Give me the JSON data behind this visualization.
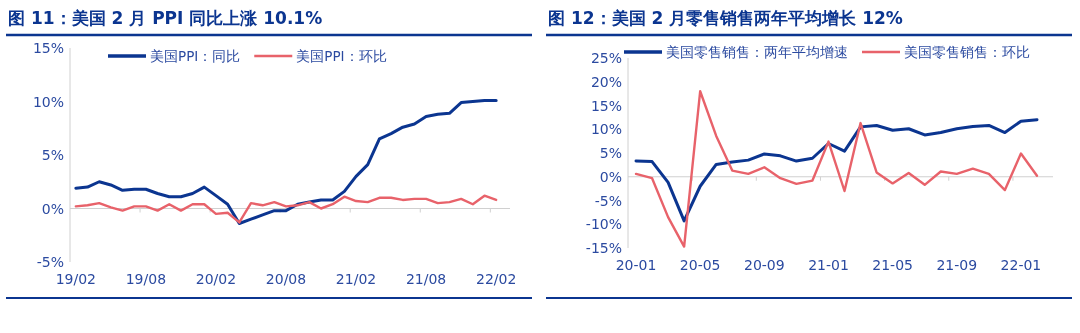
{
  "chart_data": [
    {
      "type": "line",
      "title": "图 11：美国 2 月 PPI 同比上涨 10.1%",
      "categories": [
        "19/02",
        null,
        null,
        null,
        null,
        null,
        "19/08",
        null,
        null,
        null,
        null,
        null,
        "20/02",
        null,
        null,
        null,
        null,
        null,
        "20/08",
        null,
        null,
        null,
        null,
        null,
        "21/02",
        null,
        null,
        null,
        null,
        null,
        "21/08",
        null,
        null,
        null,
        null,
        null,
        "22/02"
      ],
      "series": [
        {
          "name": "美国PPI：同比",
          "color": "#0b3590",
          "values": [
            1.9,
            2.0,
            2.5,
            2.2,
            1.7,
            1.8,
            1.8,
            1.4,
            1.1,
            1.1,
            1.4,
            2.0,
            1.2,
            0.4,
            -1.4,
            -1.0,
            -0.6,
            -0.2,
            -0.2,
            0.4,
            0.6,
            0.8,
            0.8,
            1.6,
            3.0,
            4.1,
            6.5,
            7.0,
            7.6,
            7.9,
            8.6,
            8.8,
            8.9,
            9.9,
            10.0,
            10.1,
            10.1
          ]
        },
        {
          "name": "美国PPI：环比",
          "color": "#e8626a",
          "values": [
            0.2,
            0.3,
            0.5,
            0.1,
            -0.2,
            0.2,
            0.2,
            -0.2,
            0.4,
            -0.2,
            0.4,
            0.4,
            -0.5,
            -0.4,
            -1.3,
            0.5,
            0.3,
            0.6,
            0.2,
            0.3,
            0.6,
            0.0,
            0.4,
            1.1,
            0.7,
            0.6,
            1.0,
            1.0,
            0.8,
            0.9,
            0.9,
            0.5,
            0.6,
            0.9,
            0.4,
            1.2,
            0.8
          ]
        }
      ],
      "ylim": [
        -5,
        15
      ],
      "yticks": [
        {
          "value": -5,
          "label": "-5%"
        },
        {
          "value": 0,
          "label": "0%"
        },
        {
          "value": 5,
          "label": "5%"
        },
        {
          "value": 10,
          "label": "10%"
        },
        {
          "value": 15,
          "label": "15%"
        }
      ],
      "legend": "top",
      "marker": "none",
      "line_style": "solid"
    },
    {
      "type": "line",
      "title": "图 12：美国 2 月零售销售两年平均增长 12%",
      "categories": [
        "20-01",
        null,
        null,
        null,
        "20-05",
        null,
        null,
        null,
        "20-09",
        null,
        null,
        null,
        "21-01",
        null,
        null,
        null,
        "21-05",
        null,
        null,
        null,
        "21-09",
        null,
        null,
        null,
        "22-01",
        null
      ],
      "series": [
        {
          "name": "美国零售销售：两年平均增速",
          "color": "#0b3590",
          "values": [
            3.3,
            3.2,
            -1.2,
            -9.3,
            -2.0,
            2.6,
            3.1,
            3.5,
            4.8,
            4.4,
            3.3,
            3.9,
            7.0,
            5.4,
            10.5,
            10.8,
            9.8,
            10.1,
            8.8,
            9.3,
            10.1,
            10.6,
            10.8,
            9.3,
            11.7,
            12.0
          ]
        },
        {
          "name": "美国零售销售：环比",
          "color": "#e8626a",
          "values": [
            0.6,
            -0.3,
            -8.5,
            -14.7,
            18.0,
            8.6,
            1.3,
            0.6,
            2.0,
            -0.3,
            -1.5,
            -0.8,
            7.4,
            -3.0,
            11.3,
            0.9,
            -1.4,
            0.8,
            -1.7,
            1.1,
            0.6,
            1.7,
            0.6,
            -2.8,
            4.9,
            0.2
          ]
        }
      ],
      "ylim": [
        -15,
        25
      ],
      "yticks": [
        {
          "value": -15,
          "label": "-15%"
        },
        {
          "value": -10,
          "label": "-10%"
        },
        {
          "value": -5,
          "label": "-5%"
        },
        {
          "value": 0,
          "label": "0%"
        },
        {
          "value": 5,
          "label": "5%"
        },
        {
          "value": 10,
          "label": "10%"
        },
        {
          "value": 15,
          "label": "15%"
        },
        {
          "value": 20,
          "label": "20%"
        },
        {
          "value": 25,
          "label": "25%"
        }
      ],
      "legend": "top",
      "marker": "none",
      "line_style": "solid"
    }
  ]
}
